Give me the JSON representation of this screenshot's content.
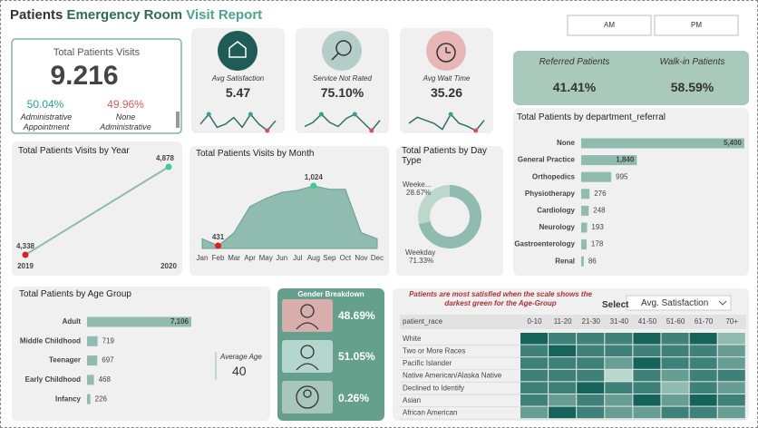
{
  "header": {
    "title": [
      "Patients",
      "Emergency Room",
      "Visit Report"
    ],
    "buttons": [
      "AM",
      "PM"
    ]
  },
  "total_visits": {
    "label": "Total Patients Visits",
    "value": "9.216",
    "groups": [
      {
        "value": "50.04%",
        "label": "Administrative Appointment"
      },
      {
        "value": "49.96%",
        "label": "None Administrative"
      }
    ]
  },
  "kpis": [
    {
      "label": "Avg Satisfaction",
      "value": "5.47",
      "trend": [
        5.3,
        5.6,
        5.2,
        5.3,
        5.5,
        5.2,
        5.6,
        5.3,
        5.1,
        5.4
      ]
    },
    {
      "label": "Service Not Rated",
      "value": "75.10%",
      "trend": [
        74,
        75,
        77,
        75,
        74,
        76,
        77,
        75,
        73,
        75.5
      ]
    },
    {
      "label": "Avg Wait Time",
      "value": "35.26",
      "trend": [
        35,
        36,
        35.5,
        35,
        34,
        36.5,
        35,
        34.5,
        33.8,
        35.5
      ]
    }
  ],
  "referral": [
    {
      "label": "Referred Patients",
      "value": "41.41%"
    },
    {
      "label": "Walk-in Patients",
      "value": "58.59%"
    }
  ],
  "average_age": {
    "label": "Average Age",
    "value": "40"
  },
  "gender": {
    "title": "Gender Breakdown",
    "values": [
      "48.69%",
      "51.05%",
      "0.26%"
    ]
  },
  "heatmap": {
    "note": "Patients are most satisfied when the scale shows the darkest green for the Age-Group",
    "select": "Select",
    "dropdown": "Avg. Satisfaction",
    "row_header": "patient_race",
    "columns": [
      "0-10",
      "11-20",
      "21-30",
      "31-40",
      "41-50",
      "51-60",
      "61-70",
      "70+"
    ],
    "rows": [
      "White",
      "Two or More Races",
      "Pacific Islander",
      "Native American/Alaska Native",
      "Declined to Identify",
      "Asian",
      "African American"
    ],
    "values": [
      [
        6,
        5.5,
        5.5,
        5.5,
        6,
        5.5,
        6,
        4.5
      ],
      [
        5.5,
        6,
        5.5,
        5.5,
        5.5,
        5.5,
        5.5,
        5
      ],
      [
        5.5,
        5.5,
        5.5,
        5,
        6,
        5.5,
        5.5,
        5
      ],
      [
        5.5,
        5.5,
        5.5,
        4,
        5.5,
        5,
        5.5,
        5.5
      ],
      [
        5.5,
        5.5,
        6,
        5.5,
        5.5,
        4.5,
        5.5,
        5
      ],
      [
        5.5,
        5,
        5.5,
        5,
        6,
        5,
        6,
        5.5
      ],
      [
        5,
        6,
        5.5,
        5,
        5,
        5.5,
        5.5,
        5
      ]
    ]
  },
  "chart_data": [
    {
      "type": "bar",
      "title": "Total Patients by department_referral",
      "categories": [
        "None",
        "General Practice",
        "Orthopedics",
        "Physiotherapy",
        "Cardiology",
        "Neurology",
        "Gastroenterology",
        "Renal"
      ],
      "values": [
        5400,
        1840,
        995,
        276,
        248,
        193,
        178,
        86
      ],
      "value_labels": [
        "5,400",
        "1,840",
        "995",
        "276",
        "248",
        "193",
        "178",
        "86"
      ],
      "color": "#8fbcae"
    },
    {
      "type": "line",
      "title": "Total Patients Visits by Year",
      "categories": [
        "2019",
        "2020"
      ],
      "values": [
        4338,
        4878
      ],
      "value_labels": [
        "4,338",
        "4,878"
      ],
      "color": "#8fbcae"
    },
    {
      "type": "area",
      "title": "Total Patients Visits by Month",
      "categories": [
        "Jan",
        "Feb",
        "Mar",
        "Apr",
        "May",
        "Jun",
        "Jul",
        "Aug",
        "Sep",
        "Oct",
        "Nov",
        "Dec"
      ],
      "values": [
        500,
        431,
        560,
        820,
        900,
        960,
        980,
        1024,
        990,
        990,
        560,
        500
      ],
      "value_labels": [
        null,
        "431",
        null,
        null,
        null,
        null,
        null,
        "1,024",
        null,
        null,
        null,
        null
      ],
      "color": "#8fbcae"
    },
    {
      "type": "donut",
      "title": "Total Patients by Day Type",
      "categories": [
        "Weeke...",
        "Weekday"
      ],
      "values": [
        28.67,
        71.33
      ],
      "value_labels": [
        "28.67%",
        "71.33%"
      ],
      "colors": [
        "#bcd8cd",
        "#8fbcae"
      ]
    },
    {
      "type": "bar",
      "title": "Total Patients by Age Group",
      "categories": [
        "Adult",
        "Middle Childhood",
        "Teenager",
        "Early Childhood",
        "Infancy"
      ],
      "values": [
        7106,
        719,
        697,
        468,
        226
      ],
      "value_labels": [
        "7,106",
        "719",
        "697",
        "468",
        "226"
      ],
      "color": "#8fbcae"
    }
  ]
}
